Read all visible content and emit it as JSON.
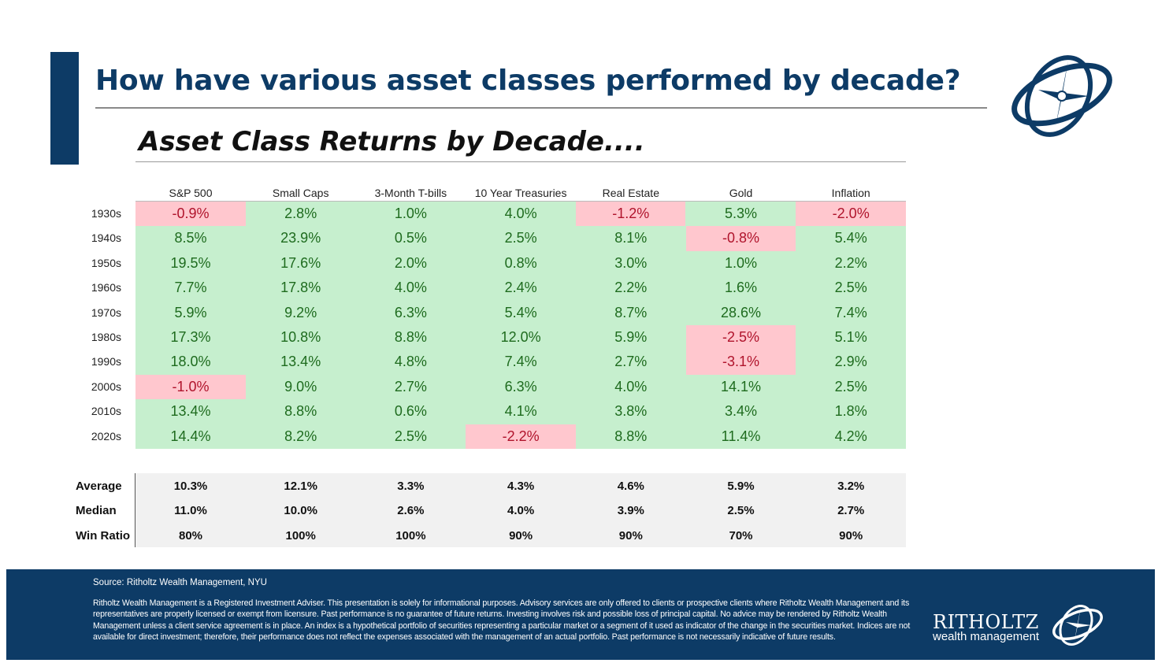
{
  "slide": {
    "title": "How have various asset classes performed by decade?"
  },
  "chart_data": {
    "type": "table",
    "title": "Asset Class Returns by Decade....",
    "columns": [
      "S&P 500",
      "Small Caps",
      "3-Month T-bills",
      "10 Year Treasuries",
      "Real Estate",
      "Gold",
      "Inflation"
    ],
    "rows": [
      {
        "label": "1930s",
        "values": [
          "-0.9%",
          "2.8%",
          "1.0%",
          "4.0%",
          "-1.2%",
          "5.3%",
          "-2.0%"
        ]
      },
      {
        "label": "1940s",
        "values": [
          "8.5%",
          "23.9%",
          "0.5%",
          "2.5%",
          "8.1%",
          "-0.8%",
          "5.4%"
        ]
      },
      {
        "label": "1950s",
        "values": [
          "19.5%",
          "17.6%",
          "2.0%",
          "0.8%",
          "3.0%",
          "1.0%",
          "2.2%"
        ]
      },
      {
        "label": "1960s",
        "values": [
          "7.7%",
          "17.8%",
          "4.0%",
          "2.4%",
          "2.2%",
          "1.6%",
          "2.5%"
        ]
      },
      {
        "label": "1970s",
        "values": [
          "5.9%",
          "9.2%",
          "6.3%",
          "5.4%",
          "8.7%",
          "28.6%",
          "7.4%"
        ]
      },
      {
        "label": "1980s",
        "values": [
          "17.3%",
          "10.8%",
          "8.8%",
          "12.0%",
          "5.9%",
          "-2.5%",
          "5.1%"
        ]
      },
      {
        "label": "1990s",
        "values": [
          "18.0%",
          "13.4%",
          "4.8%",
          "7.4%",
          "2.7%",
          "-3.1%",
          "2.9%"
        ]
      },
      {
        "label": "2000s",
        "values": [
          "-1.0%",
          "9.0%",
          "2.7%",
          "6.3%",
          "4.0%",
          "14.1%",
          "2.5%"
        ]
      },
      {
        "label": "2010s",
        "values": [
          "13.4%",
          "8.8%",
          "0.6%",
          "4.1%",
          "3.8%",
          "3.4%",
          "1.8%"
        ]
      },
      {
        "label": "2020s",
        "values": [
          "14.4%",
          "8.2%",
          "2.5%",
          "-2.2%",
          "8.8%",
          "11.4%",
          "4.2%"
        ]
      }
    ],
    "summary": [
      {
        "label": "Average",
        "values": [
          "10.3%",
          "12.1%",
          "3.3%",
          "4.3%",
          "4.6%",
          "5.9%",
          "3.2%"
        ]
      },
      {
        "label": "Median",
        "values": [
          "11.0%",
          "10.0%",
          "2.6%",
          "4.0%",
          "3.9%",
          "2.5%",
          "2.7%"
        ]
      },
      {
        "label": "Win Ratio",
        "values": [
          "80%",
          "100%",
          "100%",
          "90%",
          "90%",
          "70%",
          "90%"
        ]
      }
    ],
    "colors": {
      "positive_fill": "#c6efce",
      "positive_text": "#1e6b1e",
      "negative_fill": "#ffc7ce",
      "negative_text": "#b0142c"
    }
  },
  "footer": {
    "source": "Source: Ritholtz Wealth Management, NYU",
    "disclaimer": "Ritholtz Wealth Management is a Registered Investment Adviser. This presentation is solely for informational purposes. Advisory services are only offered to clients or prospective clients where Ritholtz Wealth Management and its representatives are properly licensed or exempt from licensure. Past performance is no guarantee of future returns. Investing involves risk and possible loss of principal capital. No advice may be rendered by Ritholtz Wealth Management unless a client service agreement is in place. An index is a hypothetical portfolio of securities representing a particular market or a segment of it used as indicator of the change in the securities market. Indices are not available for direct investment; therefore, their performance does not reflect the expenses associated with the management of an actual portfolio. Past performance is not necessarily indicative of future results.",
    "brand_name": "RITHOLTZ",
    "brand_sub": "wealth management"
  },
  "theme": {
    "primary": "#0d3b66"
  }
}
